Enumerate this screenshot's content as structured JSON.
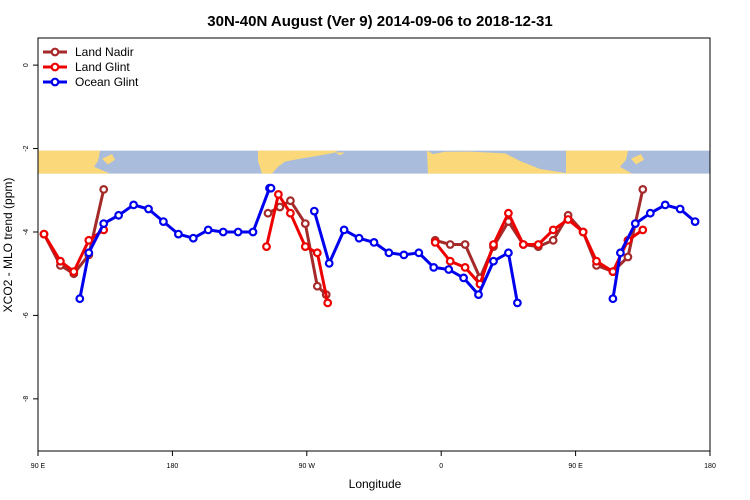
{
  "chart_data": {
    "type": "line",
    "title": "30N-40N August (Ver 9)   2014-09-06 to 2018-12-31",
    "xlabel": "Longitude",
    "ylabel": "XCO2 - MLO trend (ppm)",
    "x_ticks": [
      {
        "value": 90,
        "label": "90 E"
      },
      {
        "value": 180,
        "label": "180"
      },
      {
        "value": 270,
        "label": "90 W"
      },
      {
        "value": 360,
        "label": "0"
      },
      {
        "value": 450,
        "label": "90 E"
      },
      {
        "value": 540,
        "label": "180"
      }
    ],
    "y_ticks": [
      {
        "value": 0,
        "label": "0"
      },
      {
        "value": -2,
        "label": "-2"
      },
      {
        "value": -4,
        "label": "-4"
      },
      {
        "value": -6,
        "label": "-6"
      },
      {
        "value": -8,
        "label": "-8"
      }
    ],
    "xlim": [
      90,
      540
    ],
    "ylim": [
      -9.25,
      0.65
    ],
    "map_strip": {
      "ymin": -2.6,
      "ymax": -2.05,
      "ocean_color": "#A9BCDB",
      "land_color": "#FBD97A"
    },
    "legend": {
      "position": "top-left"
    },
    "series": [
      {
        "name": "Land Nadir",
        "color": "#A52A2A",
        "segments": [
          [
            [
              94,
              -4.05
            ],
            [
              105,
              -4.8
            ],
            [
              114,
              -5.0
            ],
            [
              124,
              -4.55
            ],
            [
              134,
              -2.98
            ]
          ],
          [
            [
              244,
              -3.55
            ],
            [
              252,
              -3.4
            ],
            [
              259,
              -3.25
            ],
            [
              269,
              -3.8
            ],
            [
              277,
              -5.3
            ],
            [
              283,
              -5.5
            ]
          ],
          [
            [
              356,
              -4.2
            ],
            [
              366,
              -4.3
            ],
            [
              376,
              -4.3
            ],
            [
              386,
              -5.1
            ],
            [
              395,
              -4.35
            ],
            [
              405,
              -3.75
            ],
            [
              415,
              -4.3
            ],
            [
              425,
              -4.35
            ],
            [
              435,
              -4.2
            ],
            [
              445,
              -3.6
            ],
            [
              455,
              -4.0
            ],
            [
              464,
              -4.8
            ],
            [
              475,
              -4.95
            ],
            [
              485,
              -4.6
            ],
            [
              495,
              -2.98
            ]
          ]
        ]
      },
      {
        "name": "Land Glint",
        "color": "#EE0000",
        "segments": [
          [
            [
              94,
              -4.05
            ],
            [
              105,
              -4.7
            ],
            [
              114,
              -4.95
            ],
            [
              124,
              -4.2
            ],
            [
              134,
              -3.95
            ]
          ],
          [
            [
              243,
              -4.35
            ],
            [
              251,
              -3.1
            ],
            [
              259,
              -3.55
            ],
            [
              269,
              -4.35
            ],
            [
              277,
              -4.5
            ],
            [
              284,
              -5.7
            ]
          ],
          [
            [
              356,
              -4.25
            ],
            [
              366,
              -4.7
            ],
            [
              376,
              -4.85
            ],
            [
              386,
              -5.25
            ],
            [
              395,
              -4.3
            ],
            [
              405,
              -3.55
            ],
            [
              415,
              -4.3
            ],
            [
              425,
              -4.3
            ],
            [
              435,
              -3.95
            ],
            [
              445,
              -3.7
            ],
            [
              455,
              -4.0
            ],
            [
              464,
              -4.7
            ],
            [
              475,
              -4.95
            ],
            [
              485,
              -4.2
            ],
            [
              495,
              -3.95
            ]
          ]
        ]
      },
      {
        "name": "Ocean Glint",
        "color": "#0000EE",
        "segments": [
          [
            [
              118,
              -5.6
            ],
            [
              124,
              -4.5
            ],
            [
              134,
              -3.8
            ],
            [
              144,
              -3.6
            ],
            [
              154,
              -3.35
            ],
            [
              164,
              -3.45
            ],
            [
              174,
              -3.75
            ],
            [
              184,
              -4.05
            ],
            [
              194,
              -4.15
            ],
            [
              204,
              -3.95
            ],
            [
              214,
              -4.0
            ],
            [
              224,
              -4.0
            ],
            [
              234,
              -4.0
            ],
            [
              245,
              -2.95
            ],
            [
              246,
              -2.95
            ]
          ],
          [
            [
              275,
              -3.5
            ],
            [
              285,
              -4.75
            ],
            [
              295,
              -3.95
            ],
            [
              305,
              -4.15
            ],
            [
              315,
              -4.25
            ],
            [
              325,
              -4.5
            ],
            [
              335,
              -4.55
            ],
            [
              345,
              -4.5
            ],
            [
              355,
              -4.85
            ],
            [
              365,
              -4.9
            ],
            [
              375,
              -5.1
            ],
            [
              385,
              -5.5
            ],
            [
              395,
              -4.7
            ],
            [
              405,
              -4.5
            ],
            [
              411,
              -5.7
            ]
          ],
          [
            [
              475,
              -5.6
            ],
            [
              480,
              -4.5
            ],
            [
              490,
              -3.8
            ],
            [
              500,
              -3.55
            ],
            [
              510,
              -3.35
            ],
            [
              520,
              -3.45
            ],
            [
              530,
              -3.75
            ]
          ]
        ]
      }
    ]
  }
}
